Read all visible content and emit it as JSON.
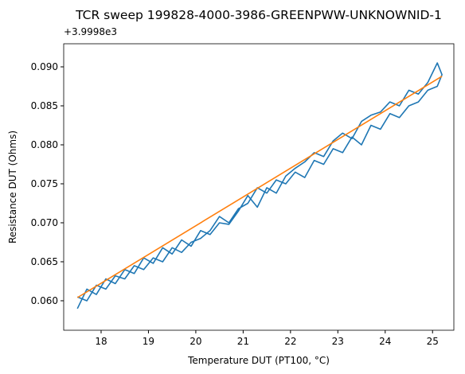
{
  "chart_data": {
    "type": "line",
    "title": "TCR sweep 199828-4000-3986-GREENPWW-UNKNOWNID-1",
    "x_label": "Temperature DUT (PT100, °C)",
    "y_label": "Resistance DUT (Ohms)",
    "y_offset_label": "+3.9998e3",
    "xlim": [
      17.21,
      25.45
    ],
    "ylim": [
      0.05622,
      0.09296
    ],
    "xticks": [
      18,
      19,
      20,
      21,
      22,
      23,
      24,
      25
    ],
    "yticks": [
      {
        "value": 0.06,
        "label": "0.060"
      },
      {
        "value": 0.065,
        "label": "0.065"
      },
      {
        "value": 0.07,
        "label": "0.070"
      },
      {
        "value": 0.075,
        "label": "0.075"
      },
      {
        "value": 0.08,
        "label": "0.080"
      },
      {
        "value": 0.085,
        "label": "0.085"
      },
      {
        "value": 0.09,
        "label": "0.090"
      }
    ],
    "series": [
      {
        "color": "#1f77b4",
        "x": [
          17.5,
          17.7,
          17.9,
          18.1,
          18.3,
          18.5,
          18.7,
          18.9,
          19.1,
          19.3,
          19.5,
          19.7,
          19.9,
          20.1,
          20.3,
          20.5,
          20.7,
          20.9,
          21.1,
          21.3,
          21.5,
          21.7,
          21.9,
          22.1,
          22.3,
          22.5,
          22.7,
          22.9,
          23.1,
          23.3,
          23.5,
          23.7,
          23.9,
          24.1,
          24.3,
          24.5,
          24.7,
          24.9,
          25.1,
          25.2,
          25.1,
          24.9,
          24.7,
          24.5,
          24.3,
          24.1,
          23.9,
          23.7,
          23.5,
          23.3,
          23.1,
          22.9,
          22.7,
          22.5,
          22.3,
          22.1,
          21.9,
          21.7,
          21.5,
          21.3,
          21.1,
          20.9,
          20.7,
          20.5,
          20.3,
          20.1,
          19.9,
          19.7,
          19.5,
          19.3,
          19.1,
          18.9,
          18.7,
          18.5,
          18.3,
          18.1,
          17.9,
          17.7,
          17.5
        ],
        "values": [
          0.059,
          0.0615,
          0.0608,
          0.0628,
          0.0622,
          0.064,
          0.0635,
          0.0655,
          0.0648,
          0.0668,
          0.066,
          0.0678,
          0.067,
          0.069,
          0.0685,
          0.07,
          0.0698,
          0.0715,
          0.0735,
          0.072,
          0.0745,
          0.0738,
          0.076,
          0.077,
          0.0778,
          0.079,
          0.0785,
          0.0805,
          0.0815,
          0.0808,
          0.083,
          0.0838,
          0.0842,
          0.0855,
          0.085,
          0.087,
          0.0865,
          0.088,
          0.0905,
          0.089,
          0.0875,
          0.087,
          0.0855,
          0.085,
          0.0835,
          0.084,
          0.082,
          0.0825,
          0.08,
          0.081,
          0.079,
          0.0795,
          0.0775,
          0.078,
          0.0758,
          0.0765,
          0.075,
          0.0755,
          0.0738,
          0.0745,
          0.0725,
          0.0718,
          0.07,
          0.0708,
          0.069,
          0.068,
          0.0675,
          0.0662,
          0.0668,
          0.065,
          0.0655,
          0.064,
          0.0645,
          0.0628,
          0.0632,
          0.0615,
          0.062,
          0.06,
          0.0605
        ]
      },
      {
        "color": "#ff7f0e",
        "x": [
          17.5,
          25.2
        ],
        "values": [
          0.0604,
          0.0888
        ]
      }
    ]
  }
}
